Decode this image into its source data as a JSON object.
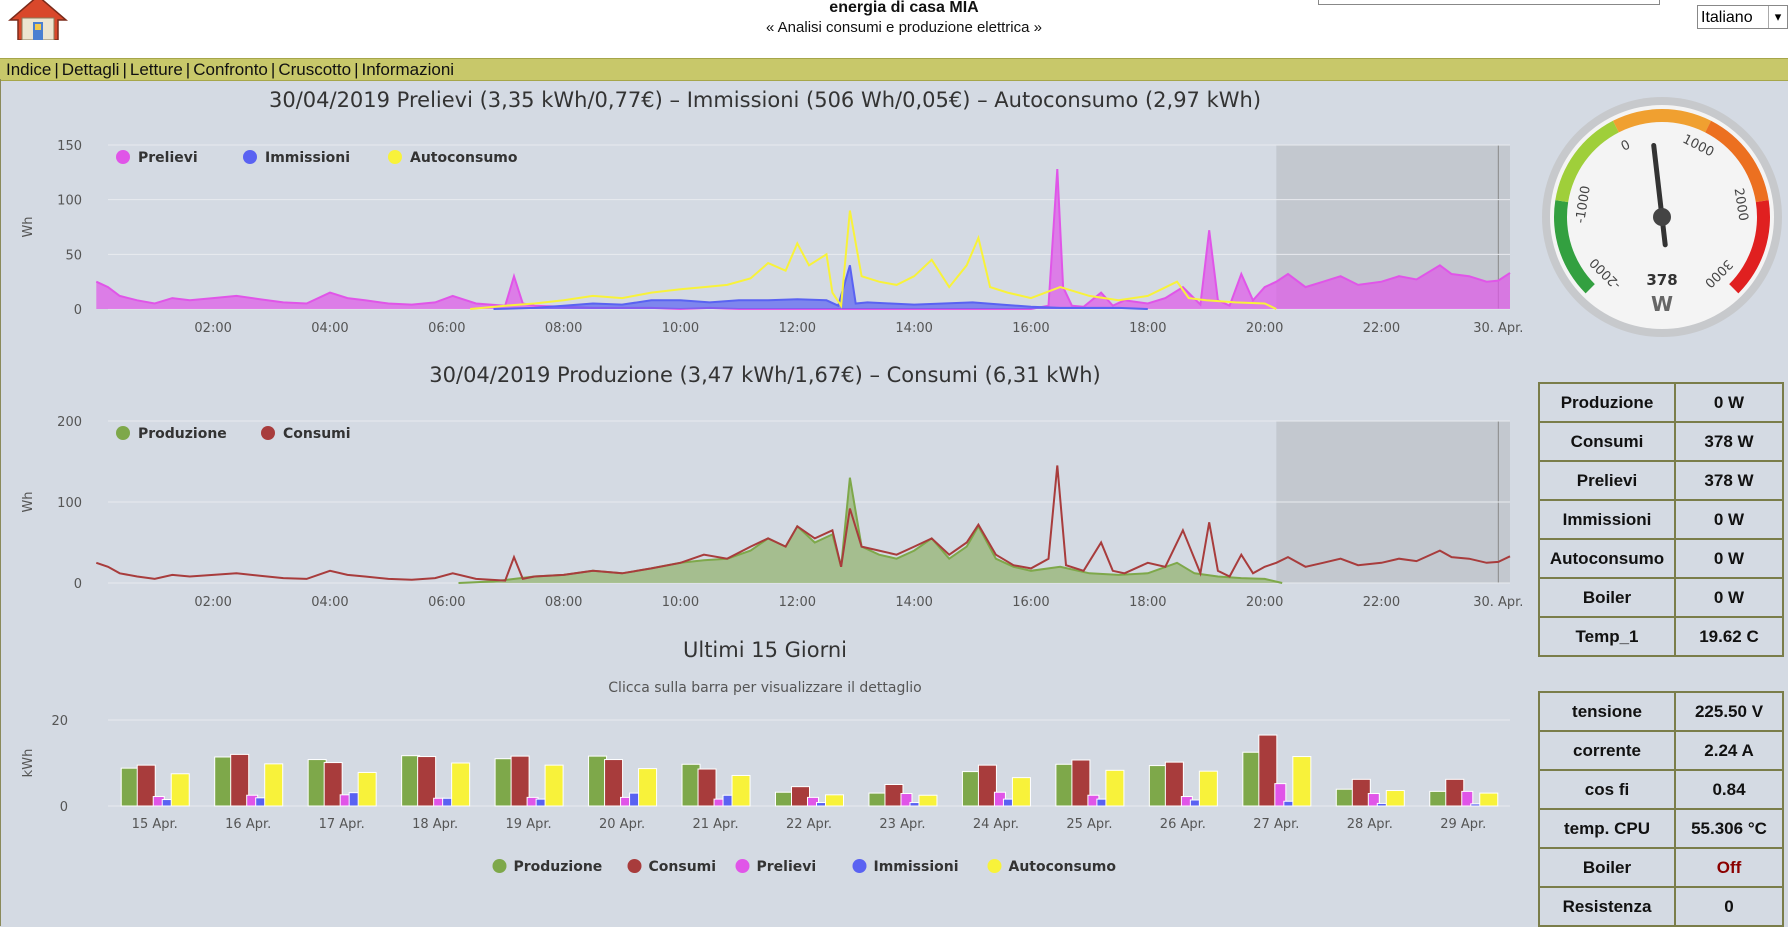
{
  "header": {
    "title": "energia di casa MIA",
    "subtitle": "« Analisi consumi e produzione elettrica »",
    "language": "Italiano"
  },
  "nav": [
    "Indice",
    "Dettagli",
    "Letture",
    "Confronto",
    "Cruscotto",
    "Informazioni"
  ],
  "colors": {
    "prelievi": "#e055e8",
    "immissioni": "#5a62f2",
    "autoconsumo": "#f8f23a",
    "produzione": "#7ea84a",
    "consumi": "#a83c3c"
  },
  "chart_data": [
    {
      "type": "area",
      "title": "30/04/2019 Prelievi (3,35 kWh/0,77€) – Immissioni (506 Wh/0,05€) – Autoconsumo (2,97 kWh)",
      "ylabel": "Wh",
      "ylim": [
        0,
        150
      ],
      "yticks": [
        0,
        50,
        100,
        150
      ],
      "xticks": [
        "02:00",
        "04:00",
        "06:00",
        "08:00",
        "10:00",
        "12:00",
        "14:00",
        "16:00",
        "18:00",
        "20:00",
        "22:00",
        "30. Apr."
      ],
      "legend": "top-left",
      "series": [
        {
          "name": "Prelievi",
          "x": [
            0.0,
            0.2,
            0.4,
            0.7,
            1.0,
            1.3,
            1.6,
            2.0,
            2.4,
            2.8,
            3.2,
            3.6,
            4.0,
            4.3,
            4.6,
            5.0,
            5.4,
            5.8,
            6.1,
            6.5,
            7.0,
            7.15,
            7.3,
            7.5,
            8.0,
            8.5,
            9.0,
            9.5,
            10.0,
            10.5,
            11.0,
            11.5,
            12.0,
            12.5,
            13.0,
            13.5,
            14.0,
            14.5,
            15.0,
            15.5,
            16.0,
            16.3,
            16.45,
            16.55,
            16.7,
            16.9,
            17.2,
            17.4,
            17.6,
            18.0,
            18.3,
            18.6,
            18.9,
            19.05,
            19.2,
            19.4,
            19.6,
            19.8,
            20.0,
            20.2,
            20.4,
            20.7,
            21.0,
            21.3,
            21.6,
            22.0,
            22.3,
            22.6,
            23.0,
            23.2,
            23.5,
            23.8,
            24.0,
            24.2
          ],
          "values": [
            25,
            20,
            12,
            8,
            5,
            10,
            8,
            10,
            12,
            9,
            6,
            5,
            15,
            10,
            8,
            5,
            4,
            6,
            12,
            5,
            3,
            30,
            5,
            3,
            2,
            1,
            1,
            1,
            0,
            1,
            0,
            0,
            0,
            0,
            0,
            0,
            0,
            0,
            0,
            0,
            0,
            3,
            128,
            20,
            3,
            2,
            15,
            3,
            8,
            5,
            10,
            20,
            4,
            72,
            8,
            3,
            32,
            8,
            20,
            25,
            32,
            20,
            25,
            30,
            22,
            25,
            30,
            27,
            40,
            32,
            30,
            25,
            26,
            33
          ]
        },
        {
          "name": "Immissioni",
          "x": [
            6.8,
            7.5,
            8.0,
            8.5,
            9.0,
            9.5,
            10.0,
            10.5,
            11.0,
            11.5,
            12.0,
            12.5,
            12.7,
            12.9,
            13.0,
            13.2,
            13.6,
            14.0,
            14.5,
            15.0,
            15.5,
            16.0,
            16.5,
            17.0,
            17.5,
            18.0
          ],
          "values": [
            0,
            1,
            3,
            5,
            4,
            8,
            8,
            6,
            8,
            8,
            9,
            8,
            3,
            40,
            5,
            6,
            5,
            4,
            5,
            6,
            4,
            2,
            1,
            1,
            1,
            0
          ]
        },
        {
          "name": "Autoconsumo",
          "x": [
            6.4,
            7.0,
            7.5,
            8.0,
            8.5,
            9.0,
            9.5,
            10.0,
            10.4,
            10.8,
            11.2,
            11.5,
            11.8,
            12.0,
            12.2,
            12.5,
            12.6,
            12.75,
            12.9,
            13.1,
            13.4,
            13.7,
            14.0,
            14.3,
            14.6,
            14.9,
            15.1,
            15.3,
            15.6,
            16.0,
            16.5,
            17.0,
            17.5,
            18.0,
            18.5,
            18.7,
            19.0,
            19.5,
            20.0,
            20.2
          ],
          "values": [
            0,
            3,
            5,
            8,
            12,
            10,
            15,
            18,
            20,
            22,
            28,
            42,
            35,
            60,
            40,
            50,
            15,
            3,
            90,
            30,
            25,
            22,
            30,
            45,
            20,
            40,
            65,
            20,
            15,
            10,
            20,
            12,
            8,
            12,
            25,
            10,
            8,
            6,
            5,
            0
          ]
        }
      ]
    },
    {
      "type": "line",
      "title": "30/04/2019 Produzione (3,47 kWh/1,67€) – Consumi (6,31 kWh)",
      "ylabel": "Wh",
      "ylim": [
        0,
        200
      ],
      "yticks": [
        0,
        100,
        200
      ],
      "xticks": [
        "02:00",
        "04:00",
        "06:00",
        "08:00",
        "10:00",
        "12:00",
        "14:00",
        "16:00",
        "18:00",
        "20:00",
        "22:00",
        "30. Apr."
      ],
      "legend": "top-left",
      "series": [
        {
          "name": "Produzione",
          "x": [
            6.2,
            6.8,
            7.5,
            8.0,
            8.5,
            9.0,
            9.5,
            10.0,
            10.4,
            10.8,
            11.2,
            11.5,
            11.8,
            12.0,
            12.3,
            12.6,
            12.75,
            12.9,
            13.1,
            13.4,
            13.7,
            14.0,
            14.3,
            14.6,
            14.9,
            15.1,
            15.4,
            15.7,
            16.0,
            16.5,
            17.0,
            17.5,
            18.0,
            18.5,
            18.8,
            19.2,
            19.6,
            20.0,
            20.3
          ],
          "values": [
            0,
            2,
            8,
            10,
            15,
            12,
            18,
            25,
            28,
            30,
            40,
            55,
            45,
            70,
            50,
            60,
            20,
            130,
            45,
            35,
            30,
            40,
            55,
            30,
            45,
            70,
            30,
            20,
            15,
            20,
            12,
            10,
            12,
            25,
            12,
            8,
            6,
            5,
            0
          ]
        },
        {
          "name": "Consumi",
          "x": [
            0.0,
            0.2,
            0.4,
            0.7,
            1.0,
            1.3,
            1.6,
            2.0,
            2.4,
            2.8,
            3.2,
            3.6,
            4.0,
            4.3,
            4.6,
            5.0,
            5.4,
            5.8,
            6.1,
            6.5,
            7.0,
            7.15,
            7.3,
            7.5,
            8.0,
            8.5,
            9.0,
            9.5,
            10.0,
            10.4,
            10.8,
            11.2,
            11.5,
            11.8,
            12.0,
            12.3,
            12.6,
            12.75,
            12.9,
            13.1,
            13.4,
            13.7,
            14.0,
            14.3,
            14.6,
            14.9,
            15.1,
            15.4,
            15.7,
            16.0,
            16.3,
            16.45,
            16.6,
            16.9,
            17.2,
            17.4,
            17.6,
            18.0,
            18.3,
            18.6,
            18.9,
            19.05,
            19.2,
            19.4,
            19.6,
            19.8,
            20.0,
            20.2,
            20.4,
            20.7,
            21.0,
            21.3,
            21.6,
            22.0,
            22.3,
            22.6,
            23.0,
            23.2,
            23.5,
            23.8,
            24.0,
            24.2
          ],
          "values": [
            25,
            20,
            12,
            8,
            5,
            10,
            8,
            10,
            12,
            9,
            6,
            5,
            15,
            10,
            8,
            5,
            4,
            6,
            12,
            5,
            3,
            32,
            5,
            8,
            10,
            15,
            12,
            18,
            25,
            35,
            30,
            45,
            55,
            45,
            70,
            55,
            65,
            20,
            92,
            45,
            40,
            35,
            45,
            55,
            35,
            50,
            72,
            35,
            22,
            18,
            30,
            145,
            22,
            15,
            50,
            15,
            12,
            25,
            20,
            65,
            12,
            75,
            15,
            8,
            35,
            12,
            20,
            25,
            32,
            20,
            25,
            30,
            22,
            25,
            30,
            27,
            40,
            32,
            30,
            25,
            26,
            33
          ]
        }
      ]
    },
    {
      "type": "bar",
      "title": "Ultimi 15 Giorni",
      "subtitle": "Clicca sulla barra per visualizzare il dettaglio",
      "ylabel": "kWh",
      "ylim": [
        0,
        20
      ],
      "yticks": [
        0,
        20
      ],
      "legend": "bottom-center",
      "categories": [
        "15 Apr.",
        "16 Apr.",
        "17 Apr.",
        "18 Apr.",
        "19 Apr.",
        "20 Apr.",
        "21 Apr.",
        "22 Apr.",
        "23 Apr.",
        "24 Apr.",
        "25 Apr.",
        "26 Apr.",
        "27 Apr.",
        "28 Apr.",
        "29 Apr."
      ],
      "series": [
        {
          "name": "Produzione",
          "values": [
            8.8,
            11.4,
            10.8,
            11.7,
            11.0,
            11.6,
            9.7,
            3.2,
            3.0,
            8.0,
            9.7,
            9.4,
            12.5,
            3.9,
            3.4
          ]
        },
        {
          "name": "Consumi",
          "values": [
            9.5,
            12.0,
            10.1,
            11.5,
            11.6,
            10.8,
            8.6,
            4.5,
            5.0,
            9.5,
            10.7,
            10.2,
            16.5,
            6.2,
            6.2
          ]
        },
        {
          "name": "Prelievi",
          "values": [
            2.2,
            2.5,
            2.6,
            1.8,
            2.0,
            2.0,
            1.6,
            2.0,
            2.9,
            3.2,
            2.5,
            2.2,
            5.2,
            2.9,
            3.4
          ]
        },
        {
          "name": "Immissioni",
          "values": [
            1.5,
            1.9,
            3.1,
            1.8,
            1.6,
            3.0,
            2.5,
            0.8,
            0.8,
            1.6,
            1.6,
            1.4,
            1.1,
            0.6,
            0.5
          ]
        },
        {
          "name": "Autoconsumo",
          "values": [
            7.5,
            9.8,
            7.8,
            10.0,
            9.5,
            8.7,
            7.1,
            2.6,
            2.5,
            6.6,
            8.3,
            8.1,
            11.5,
            3.6,
            3.0
          ]
        }
      ]
    }
  ],
  "gauge": {
    "unit": "W",
    "value": 378,
    "value_label": "378",
    "min": -2000,
    "max": 3000,
    "tick_labels": [
      "-2000",
      "-1000",
      "0",
      "1000",
      "2000",
      "3000"
    ]
  },
  "live_table": [
    {
      "label": "Produzione",
      "value": "0 W"
    },
    {
      "label": "Consumi",
      "value": "378 W"
    },
    {
      "label": "Prelievi",
      "value": "378 W"
    },
    {
      "label": "Immissioni",
      "value": "0 W"
    },
    {
      "label": "Autoconsumo",
      "value": "0 W"
    },
    {
      "label": "Boiler",
      "value": "0 W"
    },
    {
      "label": "Temp_1",
      "value": "19.62 C"
    }
  ],
  "system_table": [
    {
      "label": "tensione",
      "value": "225.50 V"
    },
    {
      "label": "corrente",
      "value": "2.24 A"
    },
    {
      "label": "cos fi",
      "value": "0.84"
    },
    {
      "label": "temp. CPU",
      "value": "55.306 °C"
    },
    {
      "label": "Boiler",
      "value": "Off"
    },
    {
      "label": "Resistenza",
      "value": "0"
    }
  ]
}
